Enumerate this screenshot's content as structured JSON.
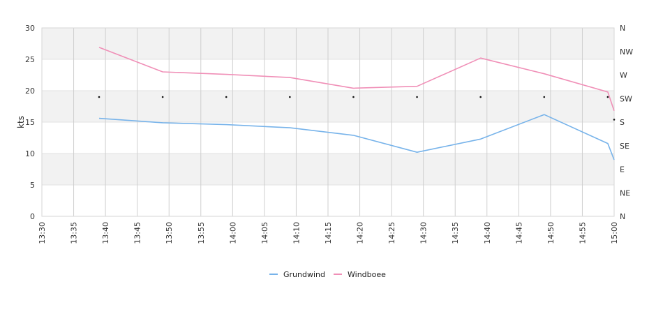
{
  "chart_data": {
    "type": "line",
    "title": "",
    "xlabel": "",
    "ylabel": "kts",
    "ylim": [
      0,
      30
    ],
    "yticks": [
      0,
      5,
      10,
      15,
      20,
      25,
      30
    ],
    "xticks": [
      "13:30",
      "13:35",
      "13:40",
      "13:45",
      "13:50",
      "13:55",
      "14:00",
      "14:05",
      "14:10",
      "14:15",
      "14:20",
      "14:25",
      "14:30",
      "14:35",
      "14:40",
      "14:45",
      "14:50",
      "14:55",
      "15:00"
    ],
    "right_axis_labels": [
      "N",
      "NE",
      "E",
      "SE",
      "S",
      "SW",
      "W",
      "NW",
      "N"
    ],
    "grid": true,
    "legend_position": "bottom-center",
    "series": [
      {
        "name": "Grundwind",
        "color": "#77b3ea",
        "x": [
          "13:39",
          "13:49",
          "13:59",
          "14:09",
          "14:19",
          "14:29",
          "14:39",
          "14:49",
          "14:59",
          "15:00"
        ],
        "y": [
          15.6,
          14.9,
          14.6,
          14.1,
          12.9,
          10.2,
          12.3,
          16.2,
          11.6,
          9.0
        ]
      },
      {
        "name": "Windboee",
        "color": "#f08fb7",
        "x": [
          "13:39",
          "13:49",
          "13:59",
          "14:09",
          "14:19",
          "14:29",
          "14:39",
          "14:49",
          "14:59",
          "15:00"
        ],
        "y": [
          26.9,
          23.0,
          22.6,
          22.1,
          20.4,
          20.7,
          25.2,
          22.7,
          19.8,
          16.8
        ]
      }
    ],
    "direction_markers": {
      "x": [
        "13:39",
        "13:49",
        "13:59",
        "14:09",
        "14:19",
        "14:29",
        "14:39",
        "14:49",
        "14:59",
        "15:00"
      ],
      "y": [
        19.0,
        19.0,
        19.0,
        19.0,
        19.0,
        19.0,
        19.0,
        19.0,
        19.0,
        15.4
      ]
    }
  }
}
